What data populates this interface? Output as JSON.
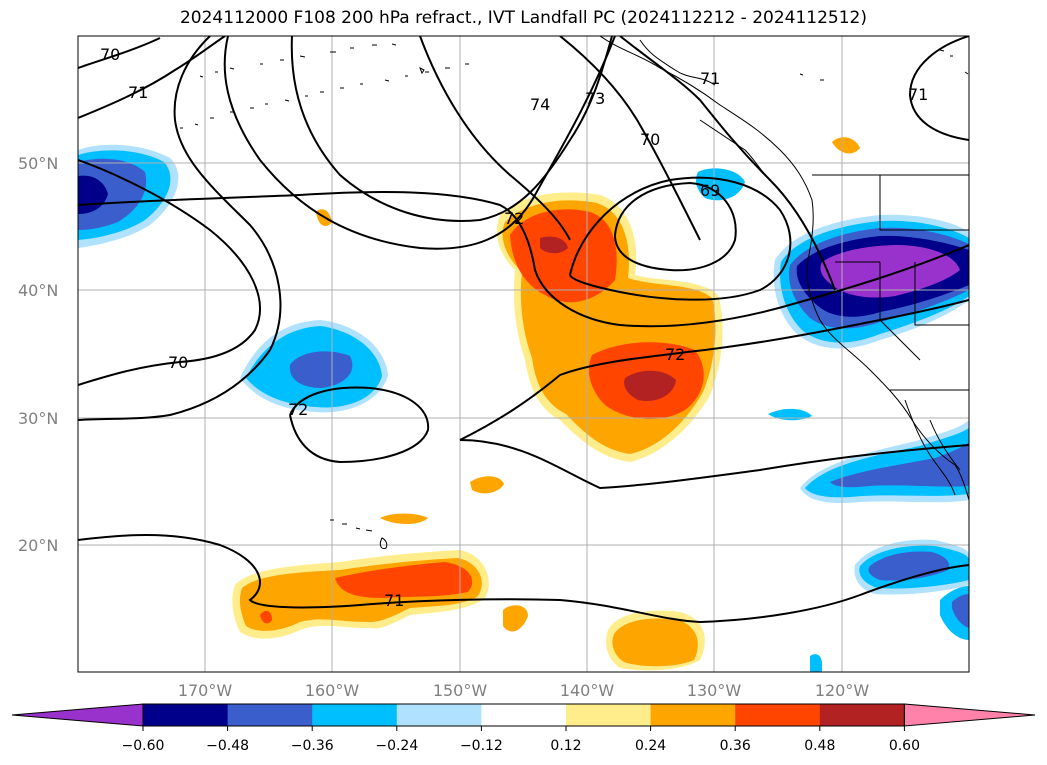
{
  "title": "2024112000 F108 200 hPa refract., IVT Landfall PC (2024112212 - 2024112512)",
  "lat_labels": [
    "50°N",
    "40°N",
    "30°N",
    "20°N"
  ],
  "lon_labels": [
    "170°W",
    "160°W",
    "150°W",
    "140°W",
    "130°W",
    "120°W"
  ],
  "contour_labels": [
    "70",
    "71",
    "70",
    "72",
    "74",
    "73",
    "71",
    "70",
    "69",
    "72",
    "72",
    "71",
    "71"
  ],
  "colorbar": {
    "ticks": [
      "−0.60",
      "−0.48",
      "−0.36",
      "−0.24",
      "−0.12",
      "0.12",
      "0.24",
      "0.36",
      "0.48",
      "0.60"
    ],
    "colors": [
      "#9932cc",
      "#00008b",
      "#3a5fcd",
      "#00bfff",
      "#b0e2ff",
      "#ffffff",
      "#ffec8b",
      "#ffa500",
      "#ff4500",
      "#b22222",
      "#ff82ab"
    ]
  }
}
